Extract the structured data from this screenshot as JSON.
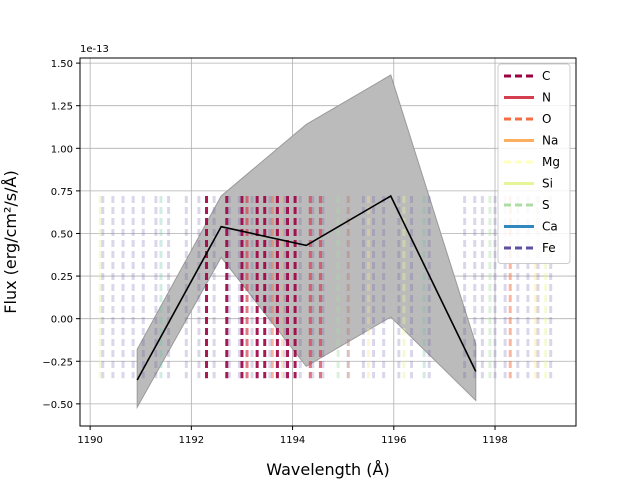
{
  "chart_data": {
    "type": "line",
    "xlabel": "Wavelength (Å)",
    "ylabel": "Flux (erg/cm²/s/Å)",
    "y_offset_text": "1e-13",
    "xlim": [
      1189.8,
      1199.6
    ],
    "ylim": [
      -0.63,
      1.53
    ],
    "grid": true,
    "x_ticks": [
      1190,
      1192,
      1194,
      1196,
      1198
    ],
    "y_ticks": [
      -0.5,
      -0.25,
      0.0,
      0.25,
      0.5,
      0.75,
      1.0,
      1.25,
      1.5
    ],
    "x_tick_labels": [
      "1190",
      "1192",
      "1194",
      "1196",
      "1198"
    ],
    "y_tick_labels": [
      "−0.50",
      "−0.25",
      "0.00",
      "0.25",
      "0.50",
      "0.75",
      "1.00",
      "1.25",
      "1.50"
    ],
    "series": [
      {
        "x": [
          1190.93,
          1192.59,
          1194.27,
          1195.94,
          1197.62
        ],
        "values": [
          -0.36,
          0.54,
          0.43,
          0.72,
          -0.31
        ],
        "color": "#000000"
      }
    ],
    "band": {
      "x": [
        1190.93,
        1192.59,
        1194.27,
        1195.94,
        1197.62
      ],
      "upper": [
        -0.18,
        0.72,
        1.14,
        1.43,
        -0.15
      ],
      "lower": [
        -0.52,
        0.36,
        -0.28,
        0.01,
        -0.48
      ],
      "color": "#bbbbbb"
    },
    "line_markers": {
      "ymin": -0.35,
      "ymax": 0.72,
      "elements": [
        {
          "name": "C",
          "color": "#9e0142",
          "alpha": 0.9,
          "x": [
            1192.3,
            1192.7,
            1193.0,
            1193.3,
            1193.45,
            1193.7,
            1193.9,
            1194.05
          ]
        },
        {
          "name": "N",
          "color": "#d53e4f",
          "alpha": 0.7,
          "x": [
            1193.1,
            1194.35,
            1194.55
          ]
        },
        {
          "name": "O",
          "color": "#f46d43",
          "alpha": 0.5,
          "x": [
            1193.6,
            1198.3
          ]
        },
        {
          "name": "Na",
          "color": "#fdae61",
          "alpha": 0.35,
          "x": [
            1193.8,
            1195.1
          ]
        },
        {
          "name": "Mg",
          "color": "#fee08b",
          "alpha": 0.35,
          "x": [
            1195.5,
            1198.8
          ]
        },
        {
          "name": "Si",
          "color": "#e6f598",
          "alpha": 0.4,
          "x": [
            1190.2,
            1196.2,
            1199.0
          ]
        },
        {
          "name": "S",
          "color": "#abdda4",
          "alpha": 0.4,
          "x": [
            1194.9,
            1197.9
          ]
        },
        {
          "name": "Ca",
          "color": "#66c2a5",
          "alpha": 0.3,
          "x": [
            1191.4,
            1196.6
          ]
        },
        {
          "name": "Fe",
          "color": "#5e4fa2",
          "alpha": 0.22,
          "x": [
            1190.25,
            1190.45,
            1190.65,
            1190.85,
            1191.05,
            1191.3,
            1191.55,
            1191.9,
            1192.15,
            1192.45,
            1192.75,
            1192.95,
            1193.2,
            1193.55,
            1193.85,
            1194.15,
            1194.4,
            1194.6,
            1195.1,
            1195.4,
            1195.6,
            1195.8,
            1196.1,
            1196.35,
            1196.7,
            1197.4,
            1197.6,
            1197.75,
            1198.0,
            1198.2,
            1198.45,
            1198.65,
            1198.85,
            1199.1
          ]
        }
      ]
    },
    "legend": {
      "position": "top-right",
      "entries": [
        {
          "label": "C",
          "color": "#9e0142",
          "style": "dashed"
        },
        {
          "label": "N",
          "color": "#d53e4f",
          "style": "solid"
        },
        {
          "label": "O",
          "color": "#f46d43",
          "style": "dashed"
        },
        {
          "label": "Na",
          "color": "#fdae61",
          "style": "solid"
        },
        {
          "label": "Mg",
          "color": "#ffffbf",
          "style": "dashed"
        },
        {
          "label": "Si",
          "color": "#e6f598",
          "style": "solid"
        },
        {
          "label": "S",
          "color": "#abdda4",
          "style": "dashed"
        },
        {
          "label": "Ca",
          "color": "#3288bd",
          "style": "solid"
        },
        {
          "label": "Fe",
          "color": "#5e4fa2",
          "style": "dashed"
        }
      ]
    }
  }
}
